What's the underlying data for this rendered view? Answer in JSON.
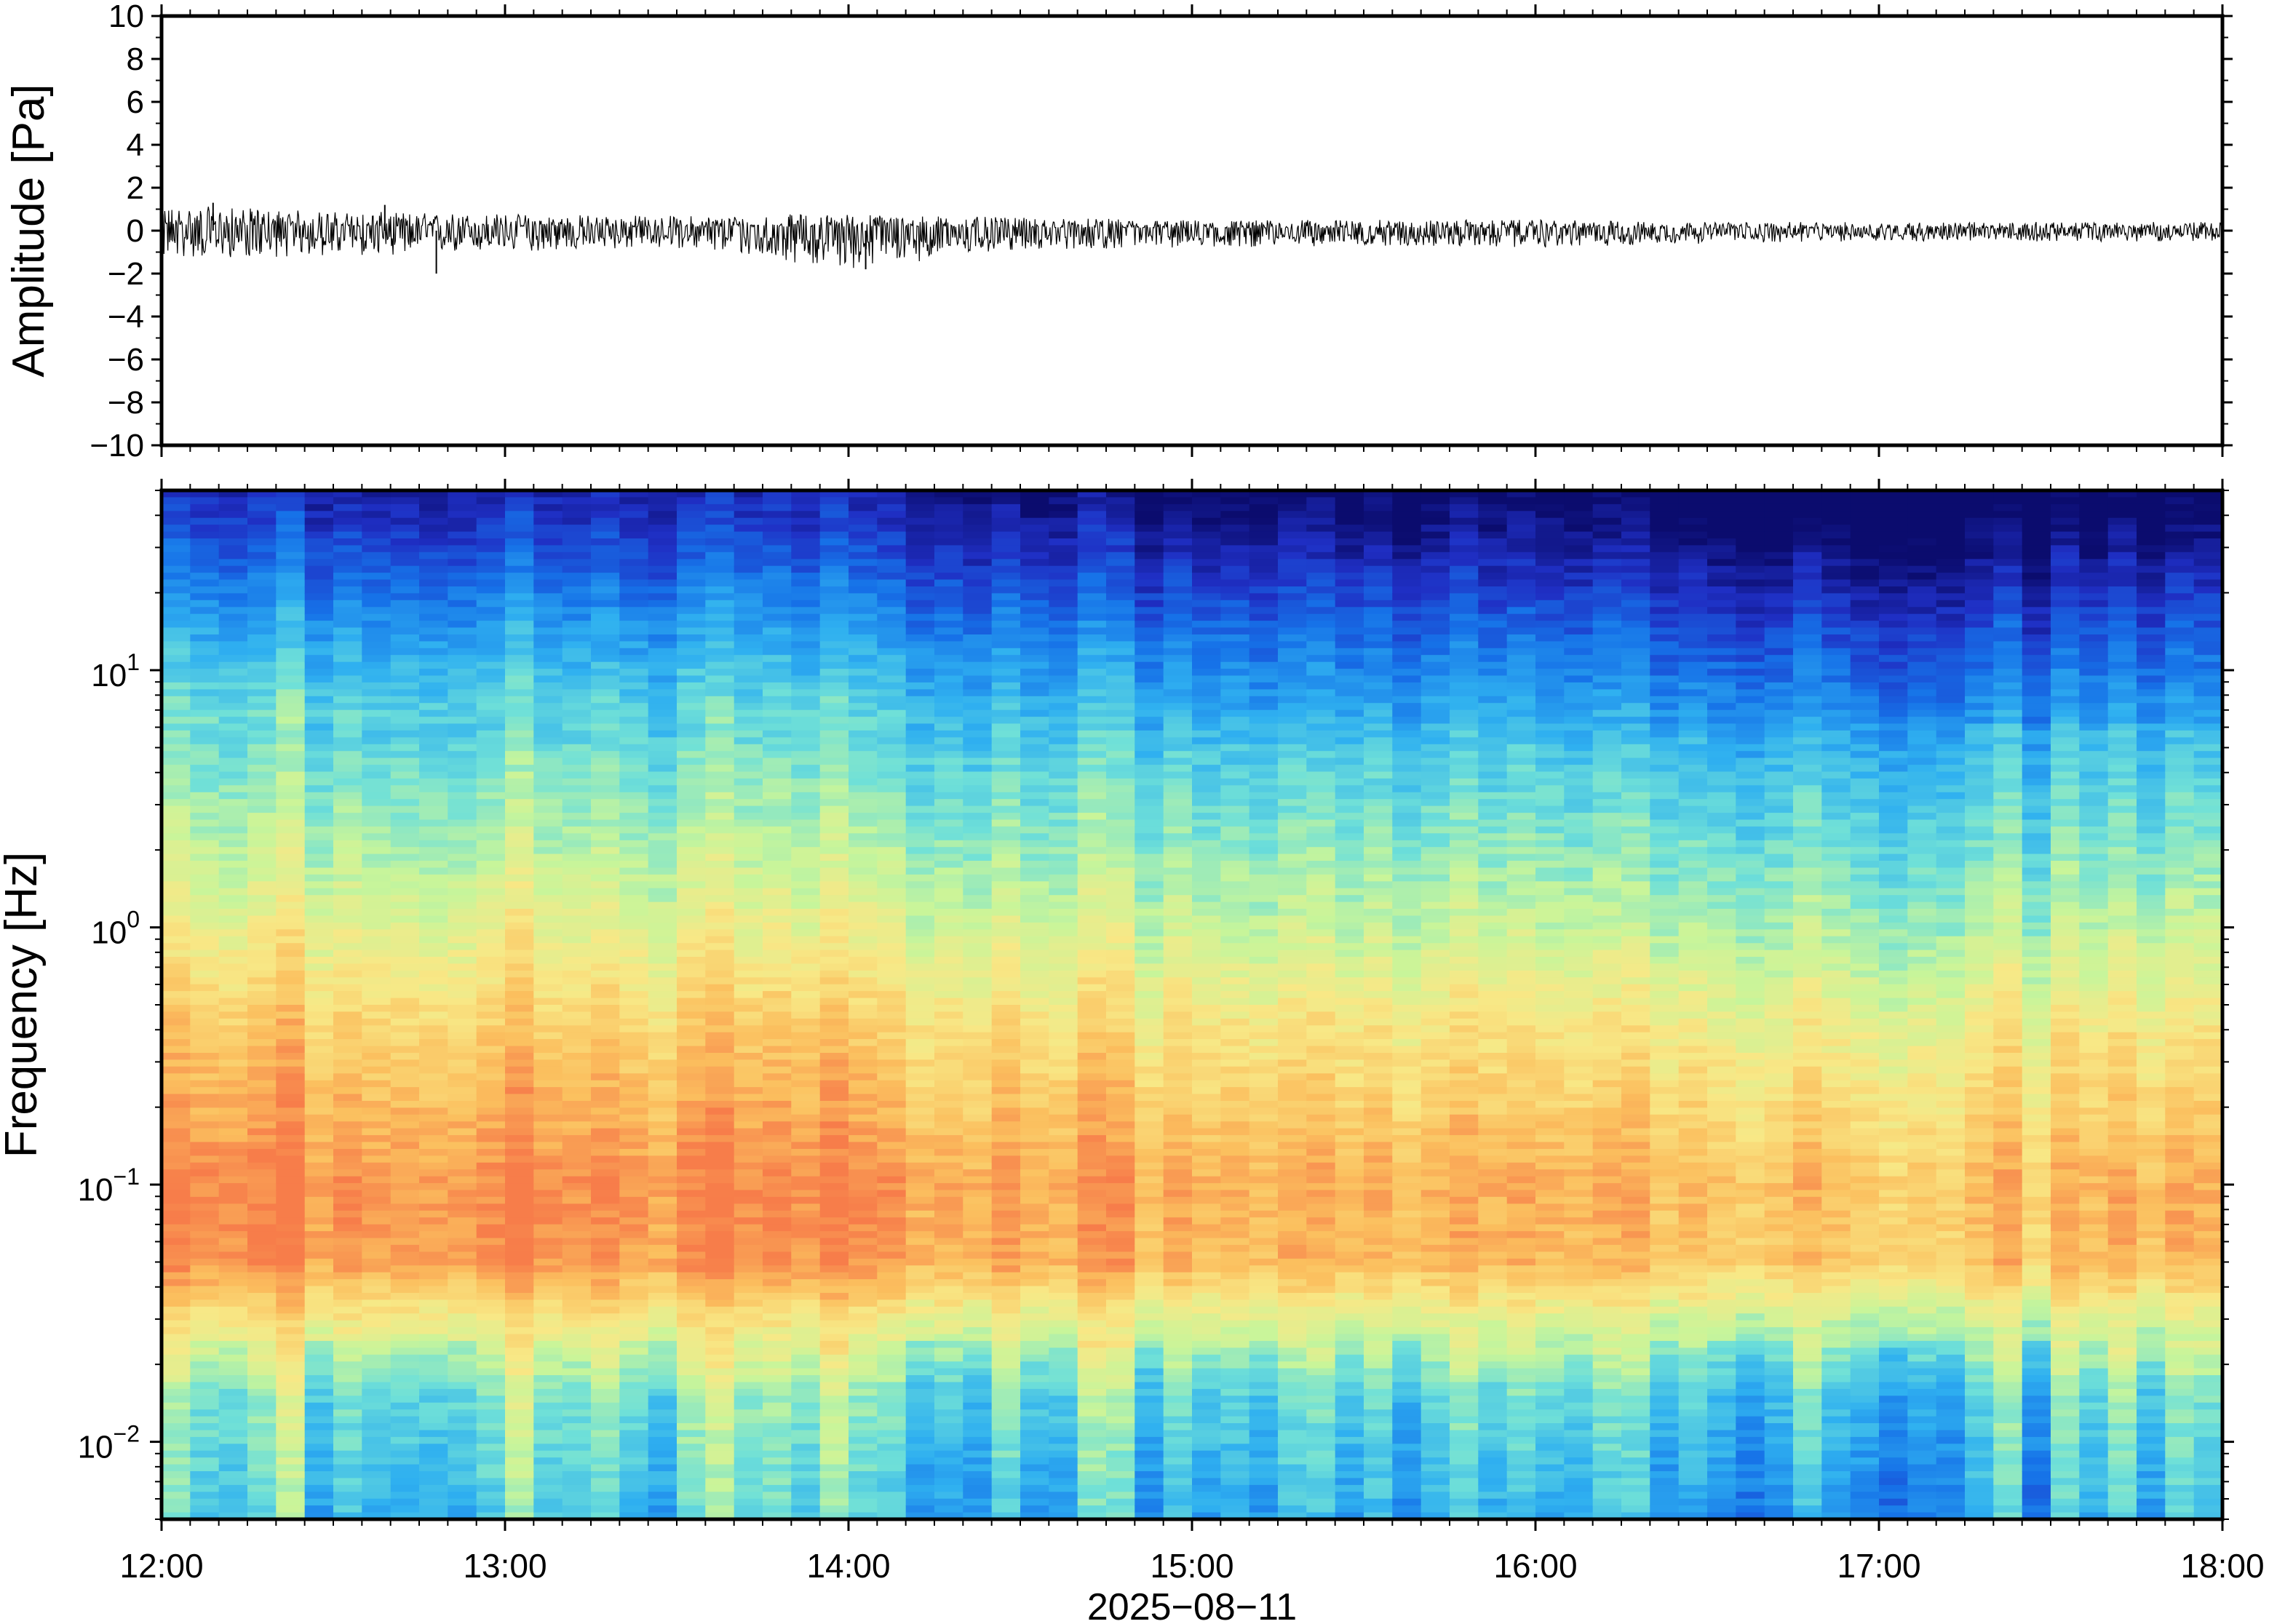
{
  "chart_data": [
    {
      "type": "line",
      "title": "",
      "xlabel": "",
      "ylabel": "Amplitude [Pa]",
      "xlim": [
        "12:00",
        "18:00"
      ],
      "ylim": [
        -10,
        10
      ],
      "y_ticks": [
        "10",
        "8",
        "6",
        "4",
        "2",
        "0",
        "−2",
        "−4",
        "−6",
        "−8",
        "−10"
      ],
      "y_tick_values": [
        10,
        8,
        6,
        4,
        2,
        0,
        -2,
        -4,
        -6,
        -8,
        -10
      ],
      "grid": false,
      "legend": "none",
      "line_color": "#000000",
      "envelope": {
        "time": [
          "12:00",
          "12:30",
          "13:00",
          "13:30",
          "14:00",
          "14:30",
          "15:00",
          "15:30",
          "16:00",
          "16:30",
          "17:00",
          "17:30",
          "18:00"
        ],
        "hours": [
          12.0,
          12.5,
          13.0,
          13.5,
          14.0,
          14.5,
          15.0,
          15.5,
          16.0,
          16.5,
          17.0,
          17.5,
          18.0
        ],
        "max": [
          1.2,
          0.9,
          0.8,
          0.7,
          0.8,
          0.6,
          0.5,
          0.5,
          0.5,
          0.4,
          0.4,
          0.4,
          0.4
        ],
        "min": [
          -1.3,
          -1.2,
          -1.0,
          -0.8,
          -1.8,
          -0.9,
          -0.8,
          -0.7,
          -0.8,
          -0.6,
          -0.5,
          -0.5,
          -0.5
        ]
      },
      "spikes": [
        {
          "time": "12:48",
          "hours": 12.8,
          "value": -2.0
        },
        {
          "time": "14:03",
          "hours": 14.05,
          "value": -1.8
        },
        {
          "time": "12:09",
          "hours": 12.15,
          "value": 1.3
        },
        {
          "time": "12:39",
          "hours": 12.65,
          "value": 1.2
        }
      ]
    },
    {
      "type": "heatmap",
      "title": "",
      "xlabel": "2025−08−11",
      "ylabel": "Frequency [Hz]",
      "y_scale": "log",
      "xlim": [
        "12:00",
        "18:00"
      ],
      "ylim": [
        0.005,
        50
      ],
      "x_ticks": [
        "12:00",
        "13:00",
        "14:00",
        "15:00",
        "16:00",
        "17:00",
        "18:00"
      ],
      "x_tick_hours": [
        12,
        13,
        14,
        15,
        16,
        17,
        18
      ],
      "y_ticks": [
        {
          "base": "10",
          "exp": "1",
          "value": 10
        },
        {
          "base": "10",
          "exp": "0",
          "value": 1
        },
        {
          "base": "10",
          "exp": "−1",
          "value": 0.1
        },
        {
          "base": "10",
          "exp": "−2",
          "value": 0.01
        }
      ],
      "grid": false,
      "legend": "none",
      "colormap": [
        "#0b0c6e",
        "#1f2fc4",
        "#1672e8",
        "#2fb0f0",
        "#6fe0d8",
        "#c8f59a",
        "#f8e886",
        "#fbbf5e",
        "#f77d4a"
      ],
      "frequency_profile_hz": [
        50,
        30,
        15,
        5,
        1,
        0.4,
        0.1,
        0.05,
        0.03,
        0.015,
        0.005
      ],
      "relative_power_profile": [
        0.0,
        0.1,
        0.25,
        0.45,
        0.65,
        0.78,
        0.92,
        0.9,
        0.7,
        0.5,
        0.4
      ],
      "time_trend": {
        "hours": [
          12,
          13,
          14,
          15,
          16,
          17,
          18
        ],
        "relative_power_change": [
          0.08,
          0.06,
          0.05,
          0.0,
          -0.02,
          -0.05,
          -0.05
        ]
      }
    }
  ]
}
